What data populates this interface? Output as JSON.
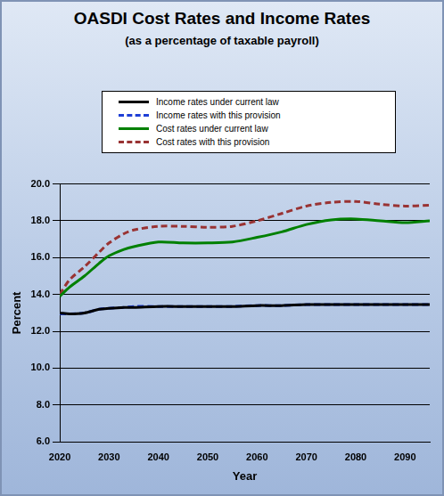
{
  "chart_data": {
    "type": "line",
    "title": "OASDI Cost Rates and Income Rates",
    "subtitle": "(as a percentage of taxable payroll)",
    "x_label": "Year",
    "y_label": "Percent",
    "x": [
      2020,
      2022,
      2025,
      2028,
      2030,
      2033,
      2035,
      2040,
      2045,
      2050,
      2055,
      2060,
      2065,
      2070,
      2075,
      2080,
      2085,
      2090,
      2095
    ],
    "series": [
      {
        "name": "Income rates under current law",
        "color": "#000000",
        "line_style": "solid",
        "values": [
          13.0,
          12.95,
          13.0,
          13.2,
          13.25,
          13.3,
          13.3,
          13.35,
          13.35,
          13.35,
          13.35,
          13.4,
          13.4,
          13.45,
          13.45,
          13.45,
          13.45,
          13.45,
          13.45
        ]
      },
      {
        "name": "Income rates with this provision",
        "color": "#1f3fd6",
        "line_style": "dashed",
        "values": [
          12.95,
          12.95,
          13.0,
          13.2,
          13.25,
          13.3,
          13.35,
          13.35,
          13.35,
          13.35,
          13.35,
          13.4,
          13.4,
          13.45,
          13.45,
          13.45,
          13.45,
          13.45,
          13.45
        ]
      },
      {
        "name": "Cost rates under current law",
        "color": "#008000",
        "line_style": "solid",
        "values": [
          13.9,
          14.4,
          15.0,
          15.7,
          16.1,
          16.45,
          16.6,
          16.85,
          16.8,
          16.8,
          16.85,
          17.1,
          17.4,
          17.8,
          18.05,
          18.1,
          18.0,
          17.9,
          18.0
        ]
      },
      {
        "name": "Cost rates with this provision",
        "color": "#993333",
        "line_style": "dashed",
        "values": [
          14.0,
          14.8,
          15.5,
          16.3,
          16.8,
          17.3,
          17.5,
          17.7,
          17.7,
          17.65,
          17.7,
          18.0,
          18.4,
          18.8,
          19.0,
          19.05,
          18.9,
          18.8,
          18.85
        ]
      }
    ],
    "xlim": [
      2020,
      2095
    ],
    "xticks": [
      2020,
      2030,
      2040,
      2050,
      2060,
      2070,
      2080,
      2090
    ],
    "ylim": [
      6,
      20
    ],
    "yticks": [
      {
        "value": 6,
        "label": "6.0"
      },
      {
        "value": 8,
        "label": "8.0"
      },
      {
        "value": 10,
        "label": "10.0"
      },
      {
        "value": 12,
        "label": "12.0"
      },
      {
        "value": 14,
        "label": "14.0"
      },
      {
        "value": 16,
        "label": "16.0"
      },
      {
        "value": 18,
        "label": "18.0"
      },
      {
        "value": 20,
        "label": "20.0"
      }
    ],
    "grid": true,
    "legend": "top"
  }
}
